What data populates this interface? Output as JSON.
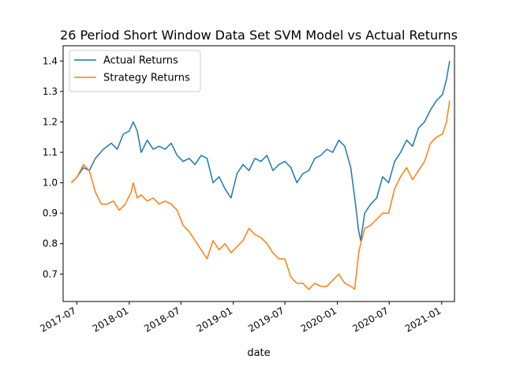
{
  "chart_data": {
    "type": "line",
    "title": "26 Period Short Window Data Set SVM Model vs Actual Returns",
    "xlabel": "date",
    "ylabel": "",
    "xlim": [
      "2017-05-14",
      "2021-02-15"
    ],
    "ylim": [
      0.61,
      1.45
    ],
    "xticks": [
      {
        "date": "2017-07-01",
        "label": "2017-07"
      },
      {
        "date": "2018-01-01",
        "label": "2018-01"
      },
      {
        "date": "2018-07-01",
        "label": "2018-07"
      },
      {
        "date": "2019-01-01",
        "label": "2019-01"
      },
      {
        "date": "2019-07-01",
        "label": "2019-07"
      },
      {
        "date": "2020-01-01",
        "label": "2020-01"
      },
      {
        "date": "2020-07-01",
        "label": "2020-07"
      },
      {
        "date": "2021-01-01",
        "label": "2021-01"
      }
    ],
    "yticks": [
      0.7,
      0.8,
      0.9,
      1.0,
      1.1,
      1.2,
      1.3,
      1.4
    ],
    "grid": false,
    "legend_position": "upper-left",
    "series": [
      {
        "name": "Actual Returns",
        "color": "#1f77b4",
        "points": [
          [
            "2017-06-12",
            1.0
          ],
          [
            "2017-07-03",
            1.02
          ],
          [
            "2017-07-24",
            1.05
          ],
          [
            "2017-08-14",
            1.04
          ],
          [
            "2017-09-04",
            1.08
          ],
          [
            "2017-10-02",
            1.11
          ],
          [
            "2017-10-30",
            1.13
          ],
          [
            "2017-11-20",
            1.11
          ],
          [
            "2017-12-11",
            1.16
          ],
          [
            "2018-01-01",
            1.17
          ],
          [
            "2018-01-15",
            1.2
          ],
          [
            "2018-01-29",
            1.17
          ],
          [
            "2018-02-12",
            1.1
          ],
          [
            "2018-03-05",
            1.14
          ],
          [
            "2018-03-26",
            1.11
          ],
          [
            "2018-04-16",
            1.12
          ],
          [
            "2018-05-07",
            1.11
          ],
          [
            "2018-05-28",
            1.13
          ],
          [
            "2018-06-18",
            1.09
          ],
          [
            "2018-07-09",
            1.07
          ],
          [
            "2018-07-30",
            1.08
          ],
          [
            "2018-08-20",
            1.06
          ],
          [
            "2018-09-10",
            1.09
          ],
          [
            "2018-10-01",
            1.08
          ],
          [
            "2018-10-22",
            1.0
          ],
          [
            "2018-11-12",
            1.02
          ],
          [
            "2018-12-03",
            0.98
          ],
          [
            "2018-12-24",
            0.95
          ],
          [
            "2019-01-14",
            1.03
          ],
          [
            "2019-02-04",
            1.06
          ],
          [
            "2019-02-25",
            1.04
          ],
          [
            "2019-03-18",
            1.08
          ],
          [
            "2019-04-08",
            1.07
          ],
          [
            "2019-04-29",
            1.09
          ],
          [
            "2019-05-20",
            1.04
          ],
          [
            "2019-06-10",
            1.06
          ],
          [
            "2019-07-01",
            1.07
          ],
          [
            "2019-07-22",
            1.05
          ],
          [
            "2019-08-12",
            1.0
          ],
          [
            "2019-09-02",
            1.03
          ],
          [
            "2019-09-23",
            1.04
          ],
          [
            "2019-10-14",
            1.08
          ],
          [
            "2019-11-04",
            1.09
          ],
          [
            "2019-11-25",
            1.11
          ],
          [
            "2019-12-16",
            1.1
          ],
          [
            "2020-01-06",
            1.14
          ],
          [
            "2020-01-27",
            1.12
          ],
          [
            "2020-02-17",
            1.05
          ],
          [
            "2020-03-02",
            0.95
          ],
          [
            "2020-03-16",
            0.84
          ],
          [
            "2020-03-23",
            0.81
          ],
          [
            "2020-04-06",
            0.9
          ],
          [
            "2020-04-27",
            0.93
          ],
          [
            "2020-05-18",
            0.95
          ],
          [
            "2020-06-08",
            1.02
          ],
          [
            "2020-06-29",
            1.0
          ],
          [
            "2020-07-20",
            1.07
          ],
          [
            "2020-08-10",
            1.1
          ],
          [
            "2020-08-31",
            1.14
          ],
          [
            "2020-09-21",
            1.12
          ],
          [
            "2020-10-12",
            1.18
          ],
          [
            "2020-11-02",
            1.2
          ],
          [
            "2020-11-23",
            1.24
          ],
          [
            "2020-12-14",
            1.27
          ],
          [
            "2021-01-04",
            1.29
          ],
          [
            "2021-01-18",
            1.34
          ],
          [
            "2021-01-29",
            1.4
          ]
        ]
      },
      {
        "name": "Strategy Returns",
        "color": "#ff7f0e",
        "points": [
          [
            "2017-06-12",
            1.0
          ],
          [
            "2017-07-03",
            1.02
          ],
          [
            "2017-07-24",
            1.06
          ],
          [
            "2017-08-14",
            1.04
          ],
          [
            "2017-09-04",
            0.97
          ],
          [
            "2017-09-25",
            0.93
          ],
          [
            "2017-10-16",
            0.93
          ],
          [
            "2017-11-06",
            0.94
          ],
          [
            "2017-11-27",
            0.91
          ],
          [
            "2017-12-18",
            0.93
          ],
          [
            "2018-01-08",
            0.97
          ],
          [
            "2018-01-15",
            1.0
          ],
          [
            "2018-01-29",
            0.95
          ],
          [
            "2018-02-12",
            0.96
          ],
          [
            "2018-03-05",
            0.94
          ],
          [
            "2018-03-26",
            0.95
          ],
          [
            "2018-04-16",
            0.93
          ],
          [
            "2018-05-07",
            0.94
          ],
          [
            "2018-05-28",
            0.93
          ],
          [
            "2018-06-18",
            0.91
          ],
          [
            "2018-07-09",
            0.86
          ],
          [
            "2018-07-30",
            0.84
          ],
          [
            "2018-08-20",
            0.81
          ],
          [
            "2018-09-10",
            0.78
          ],
          [
            "2018-10-01",
            0.75
          ],
          [
            "2018-10-22",
            0.81
          ],
          [
            "2018-11-12",
            0.78
          ],
          [
            "2018-12-03",
            0.8
          ],
          [
            "2018-12-24",
            0.77
          ],
          [
            "2019-01-14",
            0.79
          ],
          [
            "2019-02-04",
            0.81
          ],
          [
            "2019-02-25",
            0.85
          ],
          [
            "2019-03-18",
            0.83
          ],
          [
            "2019-04-08",
            0.82
          ],
          [
            "2019-04-29",
            0.8
          ],
          [
            "2019-05-20",
            0.77
          ],
          [
            "2019-06-10",
            0.75
          ],
          [
            "2019-07-01",
            0.75
          ],
          [
            "2019-07-22",
            0.69
          ],
          [
            "2019-08-12",
            0.67
          ],
          [
            "2019-09-02",
            0.67
          ],
          [
            "2019-09-23",
            0.65
          ],
          [
            "2019-10-14",
            0.67
          ],
          [
            "2019-11-04",
            0.66
          ],
          [
            "2019-11-25",
            0.66
          ],
          [
            "2019-12-16",
            0.68
          ],
          [
            "2020-01-06",
            0.7
          ],
          [
            "2020-01-27",
            0.67
          ],
          [
            "2020-02-17",
            0.66
          ],
          [
            "2020-03-02",
            0.65
          ],
          [
            "2020-03-16",
            0.77
          ],
          [
            "2020-03-23",
            0.8
          ],
          [
            "2020-04-06",
            0.85
          ],
          [
            "2020-04-27",
            0.86
          ],
          [
            "2020-05-18",
            0.88
          ],
          [
            "2020-06-08",
            0.9
          ],
          [
            "2020-06-29",
            0.9
          ],
          [
            "2020-07-20",
            0.98
          ],
          [
            "2020-08-10",
            1.02
          ],
          [
            "2020-08-31",
            1.05
          ],
          [
            "2020-09-21",
            1.01
          ],
          [
            "2020-10-12",
            1.04
          ],
          [
            "2020-11-02",
            1.07
          ],
          [
            "2020-11-23",
            1.13
          ],
          [
            "2020-12-14",
            1.15
          ],
          [
            "2021-01-04",
            1.16
          ],
          [
            "2021-01-18",
            1.2
          ],
          [
            "2021-01-29",
            1.27
          ]
        ]
      }
    ]
  }
}
